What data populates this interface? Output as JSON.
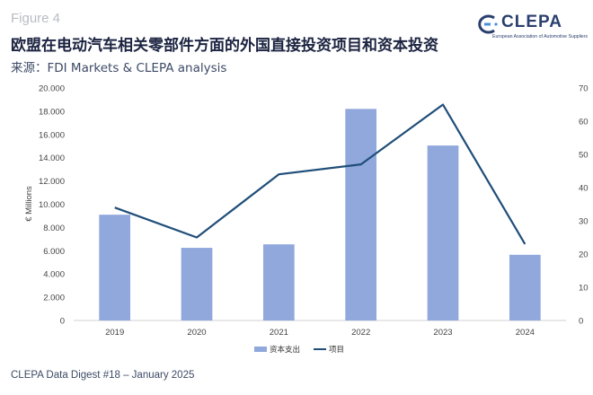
{
  "header": {
    "figure_label": "Figure 4",
    "title": "欧盟在电动汽车相关零部件方面的外国直接投资项目和资本投资",
    "subtitle": "来源：FDI Markets & CLEPA analysis"
  },
  "logo": {
    "name": "CLEPA",
    "tagline": "European Association of Automotive Suppliers"
  },
  "footer": {
    "text": "CLEPA Data Digest #18 – January 2025"
  },
  "colors": {
    "bars": "#91a8dc",
    "line": "#1f4e79"
  },
  "chart_data": {
    "type": "bar",
    "categories": [
      "2019",
      "2020",
      "2021",
      "2022",
      "2023",
      "2024"
    ],
    "series": [
      {
        "name": "资本支出",
        "type": "bar",
        "axis": "left",
        "values": [
          9100,
          6250,
          6550,
          18200,
          15050,
          5650
        ]
      },
      {
        "name": "项目",
        "type": "line",
        "axis": "right",
        "values": [
          34,
          25,
          44,
          47,
          65,
          23
        ]
      }
    ],
    "title": "",
    "xlabel": "",
    "ylabel": "€ Millions",
    "ylim": [
      0,
      20000
    ],
    "y_ticks": [
      "0",
      "2.000",
      "4.000",
      "6.000",
      "8.000",
      "10.000",
      "12.000",
      "14.000",
      "16.000",
      "18.000",
      "20.000"
    ],
    "y2lim": [
      0,
      70
    ],
    "y2_ticks": [
      "0",
      "10",
      "20",
      "30",
      "40",
      "50",
      "60",
      "70"
    ],
    "grid": false,
    "legend": "bottom"
  }
}
